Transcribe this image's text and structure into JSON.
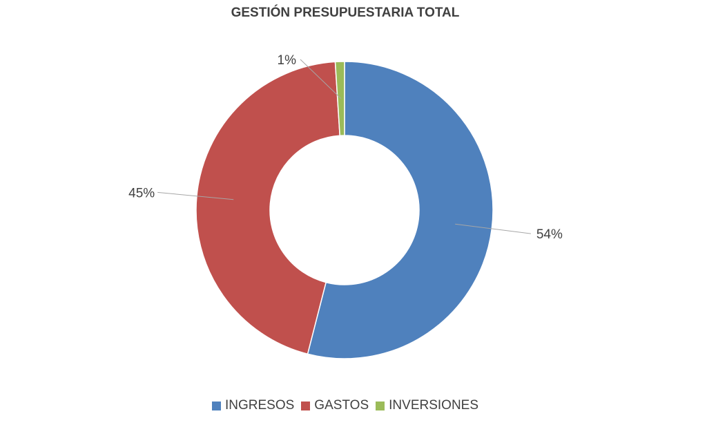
{
  "chart_data": {
    "type": "pie",
    "variant": "donut",
    "title": "GESTIÓN PRESUPUESTARIA TOTAL",
    "categories": [
      "INGRESOS",
      "GASTOS",
      "INVERSIONES"
    ],
    "values": [
      54,
      45,
      1
    ],
    "value_labels": [
      "54%",
      "45%",
      "1%"
    ],
    "colors": [
      "#4f81bd",
      "#c0504d",
      "#9bbb59"
    ],
    "legend": "bottom"
  }
}
